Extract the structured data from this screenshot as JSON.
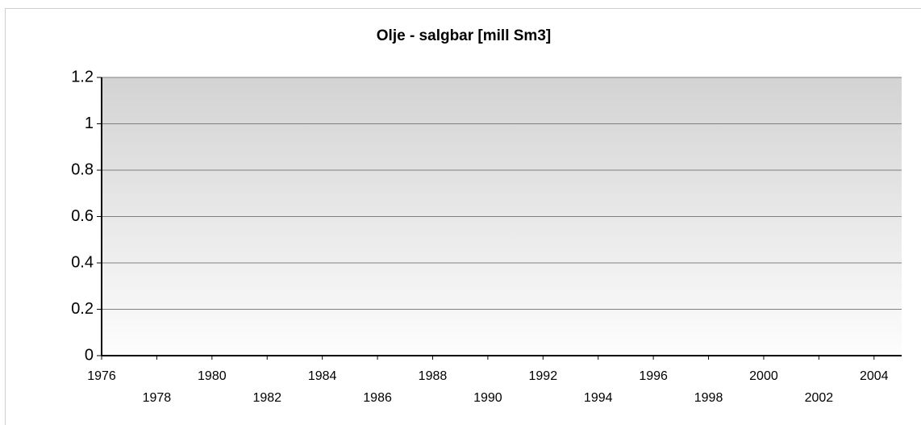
{
  "chart_data": {
    "type": "line",
    "title": "Olje - salgbar [mill Sm3]",
    "series": [],
    "xlim": [
      1976,
      2005
    ],
    "xticks": [
      1976,
      1978,
      1980,
      1982,
      1984,
      1986,
      1988,
      1990,
      1992,
      1994,
      1996,
      1998,
      2000,
      2002,
      2004
    ],
    "ylim": [
      0,
      1.2
    ],
    "yticks": [
      0,
      0.2,
      0.4,
      0.6,
      0.8,
      1,
      1.2
    ],
    "grid": true
  }
}
